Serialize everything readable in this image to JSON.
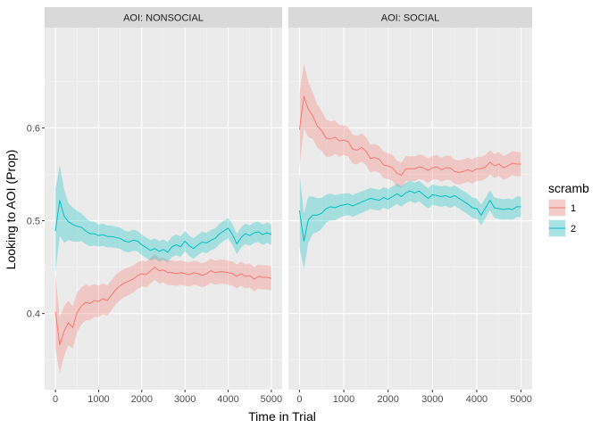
{
  "chart_data": {
    "type": "line",
    "xlabel": "Time in Trial",
    "ylabel": "Looking to AOI (Prop)",
    "xlim": [
      -250,
      5250
    ],
    "ylim": [
      0.318,
      0.708
    ],
    "x_ticks": [
      0,
      1000,
      2000,
      3000,
      4000,
      5000
    ],
    "x_tick_labels": [
      "0",
      "1000",
      "2000",
      "3000",
      "4000",
      "5000"
    ],
    "y_ticks": [
      0.4,
      0.5,
      0.6
    ],
    "y_tick_labels": [
      "0.4",
      "0.5",
      "0.6"
    ],
    "grid": true,
    "legend": {
      "title": "scramb",
      "placement": "right",
      "entries": [
        {
          "label": "1",
          "color": "#F8766D"
        },
        {
          "label": "2",
          "color": "#00BFC4"
        }
      ]
    },
    "panels": [
      {
        "strip": "AOI:  NONSOCIAL",
        "series": [
          {
            "name": "1",
            "color": "#F8766D",
            "points": [
              [
                0,
                0.402
              ],
              [
                100,
                0.366
              ],
              [
                200,
                0.381
              ],
              [
                300,
                0.39
              ],
              [
                400,
                0.385
              ],
              [
                500,
                0.401
              ],
              [
                600,
                0.408
              ],
              [
                700,
                0.412
              ],
              [
                800,
                0.411
              ],
              [
                900,
                0.414
              ],
              [
                1000,
                0.413
              ],
              [
                1100,
                0.416
              ],
              [
                1200,
                0.414
              ],
              [
                1300,
                0.42
              ],
              [
                1400,
                0.426
              ],
              [
                1500,
                0.43
              ],
              [
                1600,
                0.433
              ],
              [
                1700,
                0.435
              ],
              [
                1800,
                0.437
              ],
              [
                1900,
                0.441
              ],
              [
                2000,
                0.443
              ],
              [
                2100,
                0.442
              ],
              [
                2200,
                0.446
              ],
              [
                2300,
                0.45
              ],
              [
                2400,
                0.446
              ],
              [
                2500,
                0.447
              ],
              [
                2600,
                0.444
              ],
              [
                2700,
                0.444
              ],
              [
                2800,
                0.443
              ],
              [
                2900,
                0.444
              ],
              [
                3000,
                0.443
              ],
              [
                3100,
                0.442
              ],
              [
                3200,
                0.444
              ],
              [
                3300,
                0.443
              ],
              [
                3400,
                0.441
              ],
              [
                3500,
                0.443
              ],
              [
                3600,
                0.446
              ],
              [
                3700,
                0.444
              ],
              [
                3800,
                0.445
              ],
              [
                3900,
                0.445
              ],
              [
                4000,
                0.444
              ],
              [
                4100,
                0.443
              ],
              [
                4200,
                0.44
              ],
              [
                4300,
                0.443
              ],
              [
                4400,
                0.44
              ],
              [
                4500,
                0.441
              ],
              [
                4600,
                0.437
              ],
              [
                4700,
                0.44
              ],
              [
                4800,
                0.439
              ],
              [
                4900,
                0.439
              ],
              [
                5000,
                0.438
              ]
            ],
            "ci_halfwidth": [
              [
                0,
                0.04
              ],
              [
                100,
                0.03
              ],
              [
                300,
                0.024
              ],
              [
                600,
                0.02
              ],
              [
                1000,
                0.017
              ],
              [
                2000,
                0.014
              ],
              [
                3000,
                0.013
              ],
              [
                5000,
                0.013
              ]
            ]
          },
          {
            "name": "2",
            "color": "#00BFC4",
            "points": [
              [
                0,
                0.489
              ],
              [
                100,
                0.522
              ],
              [
                200,
                0.505
              ],
              [
                300,
                0.499
              ],
              [
                400,
                0.496
              ],
              [
                500,
                0.494
              ],
              [
                600,
                0.493
              ],
              [
                700,
                0.489
              ],
              [
                800,
                0.486
              ],
              [
                900,
                0.486
              ],
              [
                1000,
                0.484
              ],
              [
                1100,
                0.485
              ],
              [
                1200,
                0.483
              ],
              [
                1300,
                0.483
              ],
              [
                1400,
                0.482
              ],
              [
                1500,
                0.481
              ],
              [
                1600,
                0.478
              ],
              [
                1700,
                0.477
              ],
              [
                1800,
                0.479
              ],
              [
                1900,
                0.478
              ],
              [
                2000,
                0.474
              ],
              [
                2100,
                0.471
              ],
              [
                2200,
                0.468
              ],
              [
                2300,
                0.47
              ],
              [
                2400,
                0.467
              ],
              [
                2500,
                0.469
              ],
              [
                2600,
                0.466
              ],
              [
                2700,
                0.472
              ],
              [
                2800,
                0.474
              ],
              [
                2900,
                0.472
              ],
              [
                3000,
                0.478
              ],
              [
                3100,
                0.473
              ],
              [
                3200,
                0.47
              ],
              [
                3300,
                0.474
              ],
              [
                3400,
                0.477
              ],
              [
                3500,
                0.476
              ],
              [
                3600,
                0.479
              ],
              [
                3700,
                0.481
              ],
              [
                3800,
                0.486
              ],
              [
                3900,
                0.489
              ],
              [
                4000,
                0.492
              ],
              [
                4100,
                0.485
              ],
              [
                4200,
                0.475
              ],
              [
                4300,
                0.482
              ],
              [
                4400,
                0.486
              ],
              [
                4500,
                0.484
              ],
              [
                4600,
                0.487
              ],
              [
                4700,
                0.488
              ],
              [
                4800,
                0.485
              ],
              [
                4900,
                0.487
              ],
              [
                5000,
                0.485
              ]
            ],
            "ci_halfwidth": [
              [
                0,
                0.045
              ],
              [
                100,
                0.038
              ],
              [
                300,
                0.02
              ],
              [
                600,
                0.015
              ],
              [
                1000,
                0.012
              ],
              [
                2000,
                0.011
              ],
              [
                3000,
                0.011
              ],
              [
                5000,
                0.011
              ]
            ]
          }
        ]
      },
      {
        "strip": "AOI:  SOCIAL",
        "series": [
          {
            "name": "1",
            "color": "#F8766D",
            "points": [
              [
                0,
                0.598
              ],
              [
                100,
                0.634
              ],
              [
                200,
                0.62
              ],
              [
                300,
                0.613
              ],
              [
                400,
                0.602
              ],
              [
                500,
                0.597
              ],
              [
                600,
                0.589
              ],
              [
                700,
                0.588
              ],
              [
                800,
                0.59
              ],
              [
                900,
                0.586
              ],
              [
                1000,
                0.587
              ],
              [
                1100,
                0.585
              ],
              [
                1200,
                0.577
              ],
              [
                1300,
                0.576
              ],
              [
                1400,
                0.579
              ],
              [
                1500,
                0.575
              ],
              [
                1600,
                0.567
              ],
              [
                1700,
                0.568
              ],
              [
                1800,
                0.566
              ],
              [
                1900,
                0.56
              ],
              [
                2000,
                0.559
              ],
              [
                2100,
                0.557
              ],
              [
                2200,
                0.551
              ],
              [
                2300,
                0.549
              ],
              [
                2400,
                0.556
              ],
              [
                2500,
                0.556
              ],
              [
                2600,
                0.556
              ],
              [
                2700,
                0.558
              ],
              [
                2800,
                0.557
              ],
              [
                2900,
                0.554
              ],
              [
                3000,
                0.557
              ],
              [
                3100,
                0.558
              ],
              [
                3200,
                0.555
              ],
              [
                3300,
                0.557
              ],
              [
                3400,
                0.557
              ],
              [
                3500,
                0.553
              ],
              [
                3600,
                0.552
              ],
              [
                3700,
                0.553
              ],
              [
                3800,
                0.555
              ],
              [
                3900,
                0.553
              ],
              [
                4000,
                0.556
              ],
              [
                4100,
                0.556
              ],
              [
                4200,
                0.558
              ],
              [
                4300,
                0.563
              ],
              [
                4400,
                0.559
              ],
              [
                4500,
                0.561
              ],
              [
                4600,
                0.557
              ],
              [
                4700,
                0.559
              ],
              [
                4800,
                0.562
              ],
              [
                4900,
                0.561
              ],
              [
                5000,
                0.561
              ]
            ],
            "ci_halfwidth": [
              [
                0,
                0.04
              ],
              [
                100,
                0.035
              ],
              [
                300,
                0.025
              ],
              [
                600,
                0.02
              ],
              [
                1000,
                0.016
              ],
              [
                2000,
                0.014
              ],
              [
                3000,
                0.013
              ],
              [
                5000,
                0.013
              ]
            ]
          },
          {
            "name": "2",
            "color": "#00BFC4",
            "points": [
              [
                0,
                0.511
              ],
              [
                100,
                0.478
              ],
              [
                200,
                0.501
              ],
              [
                300,
                0.506
              ],
              [
                400,
                0.506
              ],
              [
                500,
                0.508
              ],
              [
                600,
                0.513
              ],
              [
                700,
                0.515
              ],
              [
                800,
                0.514
              ],
              [
                900,
                0.516
              ],
              [
                1000,
                0.517
              ],
              [
                1100,
                0.518
              ],
              [
                1200,
                0.516
              ],
              [
                1300,
                0.518
              ],
              [
                1400,
                0.52
              ],
              [
                1500,
                0.522
              ],
              [
                1600,
                0.524
              ],
              [
                1700,
                0.523
              ],
              [
                1800,
                0.522
              ],
              [
                1900,
                0.525
              ],
              [
                2000,
                0.523
              ],
              [
                2100,
                0.526
              ],
              [
                2200,
                0.529
              ],
              [
                2300,
                0.526
              ],
              [
                2400,
                0.53
              ],
              [
                2500,
                0.532
              ],
              [
                2600,
                0.53
              ],
              [
                2700,
                0.532
              ],
              [
                2800,
                0.528
              ],
              [
                2900,
                0.524
              ],
              [
                3000,
                0.528
              ],
              [
                3100,
                0.527
              ],
              [
                3200,
                0.526
              ],
              [
                3300,
                0.527
              ],
              [
                3400,
                0.525
              ],
              [
                3500,
                0.527
              ],
              [
                3600,
                0.524
              ],
              [
                3700,
                0.521
              ],
              [
                3800,
                0.518
              ],
              [
                3900,
                0.514
              ],
              [
                4000,
                0.513
              ],
              [
                4100,
                0.506
              ],
              [
                4200,
                0.514
              ],
              [
                4300,
                0.522
              ],
              [
                4400,
                0.514
              ],
              [
                4500,
                0.513
              ],
              [
                4600,
                0.512
              ],
              [
                4700,
                0.513
              ],
              [
                4800,
                0.512
              ],
              [
                4900,
                0.515
              ],
              [
                5000,
                0.515
              ]
            ],
            "ci_halfwidth": [
              [
                0,
                0.04
              ],
              [
                100,
                0.03
              ],
              [
                300,
                0.02
              ],
              [
                600,
                0.015
              ],
              [
                1000,
                0.012
              ],
              [
                2000,
                0.011
              ],
              [
                3000,
                0.011
              ],
              [
                5000,
                0.011
              ]
            ]
          }
        ]
      }
    ]
  }
}
